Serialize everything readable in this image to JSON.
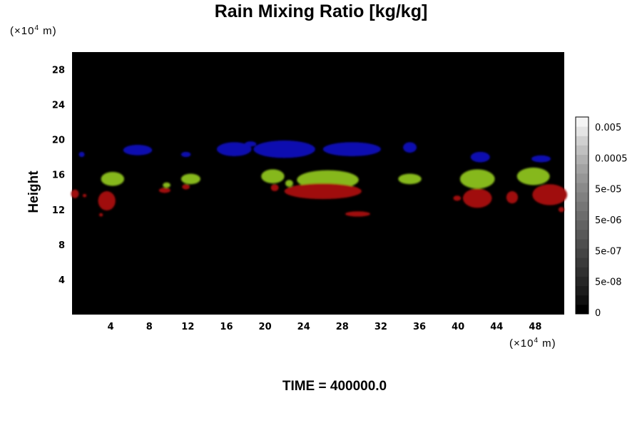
{
  "chart_data": {
    "type": "heatmap",
    "title": "Rain Mixing Ratio [kg/kg]",
    "ylabel": "Height",
    "xunit": "(×10",
    "yunit": "(×10",
    "unit_exp": "4",
    "unit_suffix": " m)",
    "footer": "TIME = 400000.0",
    "x_ticks": [
      4,
      8,
      12,
      16,
      20,
      24,
      28,
      32,
      36,
      40,
      44,
      48
    ],
    "y_ticks": [
      4,
      8,
      12,
      16,
      20,
      24,
      28
    ],
    "xlim": [
      0,
      51
    ],
    "ylim": [
      0,
      30
    ],
    "background": "#000000",
    "colorbar": {
      "labels": [
        "0.005",
        "0.0005",
        "5e-05",
        "5e-06",
        "5e-07",
        "5e-08",
        "0"
      ],
      "colors": [
        "#000000",
        "#101010",
        "#1c1c1c",
        "#262626",
        "#303030",
        "#3a3a3a",
        "#444444",
        "#4e4e4e",
        "#585858",
        "#626262",
        "#6c6c6c",
        "#767676",
        "#808080",
        "#8a8a8a",
        "#969696",
        "#a2a2a2",
        "#b0b0b0",
        "#c0c0c0",
        "#d0d0d0",
        "#e4e4e4",
        "#f4f4f4"
      ]
    },
    "regions": [
      {
        "color": "#0a0ab0",
        "blobs": [
          [
            1.0,
            18.3,
            0.3,
            0.3
          ],
          [
            6.8,
            18.8,
            1.5,
            0.6
          ],
          [
            11.8,
            18.3,
            0.5,
            0.3
          ],
          [
            16.8,
            18.9,
            1.8,
            0.8
          ],
          [
            18.5,
            19.5,
            0.6,
            0.3
          ],
          [
            22.0,
            18.9,
            3.2,
            1.0
          ],
          [
            29.0,
            18.9,
            3.0,
            0.8
          ],
          [
            35.0,
            19.1,
            0.7,
            0.6
          ],
          [
            42.3,
            18.0,
            1.0,
            0.6
          ],
          [
            48.6,
            17.8,
            1.0,
            0.4
          ]
        ]
      },
      {
        "color": "#86b81a",
        "blobs": [
          [
            4.2,
            15.5,
            1.2,
            0.8
          ],
          [
            9.8,
            14.8,
            0.4,
            0.3
          ],
          [
            12.3,
            15.5,
            1.0,
            0.6
          ],
          [
            20.8,
            15.8,
            1.2,
            0.8
          ],
          [
            22.5,
            15.0,
            0.4,
            0.4
          ],
          [
            26.5,
            15.4,
            3.2,
            1.1
          ],
          [
            35.0,
            15.5,
            1.2,
            0.6
          ],
          [
            42.0,
            15.5,
            1.8,
            1.1
          ],
          [
            47.8,
            15.8,
            1.7,
            1.0
          ]
        ]
      },
      {
        "color": "#a00a0a",
        "blobs": [
          [
            0.3,
            13.8,
            0.4,
            0.5
          ],
          [
            1.3,
            13.6,
            0.2,
            0.2
          ],
          [
            3.6,
            13.0,
            0.9,
            1.1
          ],
          [
            3.0,
            11.4,
            0.2,
            0.2
          ],
          [
            9.6,
            14.2,
            0.6,
            0.3
          ],
          [
            11.8,
            14.6,
            0.4,
            0.3
          ],
          [
            21.0,
            14.5,
            0.4,
            0.4
          ],
          [
            26.0,
            14.1,
            4.0,
            0.9
          ],
          [
            29.6,
            11.5,
            1.3,
            0.3
          ],
          [
            39.9,
            13.3,
            0.4,
            0.3
          ],
          [
            42.0,
            13.3,
            1.5,
            1.1
          ],
          [
            45.6,
            13.4,
            0.6,
            0.7
          ],
          [
            49.5,
            13.7,
            1.8,
            1.2
          ],
          [
            50.7,
            12.0,
            0.3,
            0.3
          ]
        ]
      }
    ]
  }
}
